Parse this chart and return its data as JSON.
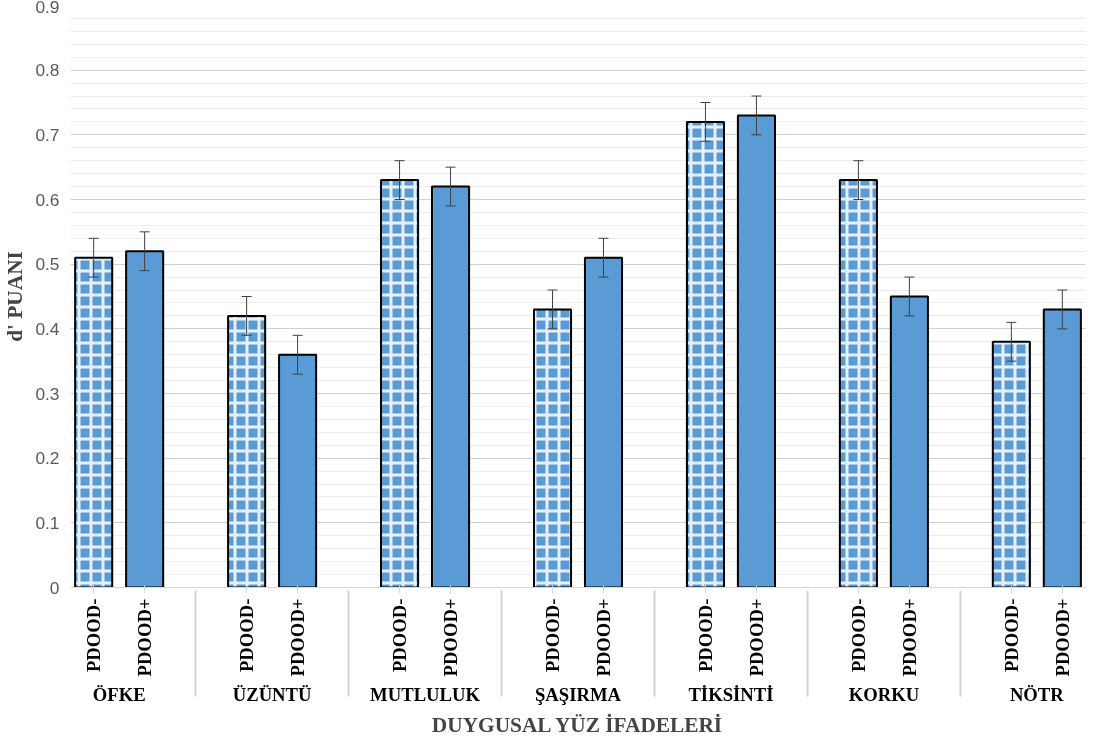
{
  "chart_data": {
    "type": "bar",
    "xlabel": "DUYGUSAL YÜZ İFADELERİ",
    "ylabel": "d' PUANI",
    "categories": [
      "ÖFKE",
      "ÜZÜNTÜ",
      "MUTLULUK",
      "ŞAŞIRMA",
      "TİKSİNTİ",
      "KORKU",
      "NÖTR"
    ],
    "series": [
      {
        "name": "PDOOD-",
        "color": "#5b9bd5",
        "values": [
          0.51,
          0.42,
          0.63,
          0.43,
          0.72,
          0.63,
          0.38
        ],
        "errors": [
          0.03,
          0.03,
          0.03,
          0.03,
          0.03,
          0.03,
          0.03
        ]
      },
      {
        "name": "PDOOD+",
        "color": "#5b9bd5",
        "values": [
          0.52,
          0.36,
          0.62,
          0.51,
          0.73,
          0.45,
          0.43
        ],
        "errors": [
          0.03,
          0.03,
          0.03,
          0.03,
          0.03,
          0.03,
          0.03
        ]
      }
    ],
    "ylim": [
      0,
      0.9
    ],
    "yticks": [
      0,
      0.1,
      0.2,
      0.3,
      0.4,
      0.5,
      0.6,
      0.7,
      0.8,
      0.9
    ],
    "grid": "y"
  }
}
